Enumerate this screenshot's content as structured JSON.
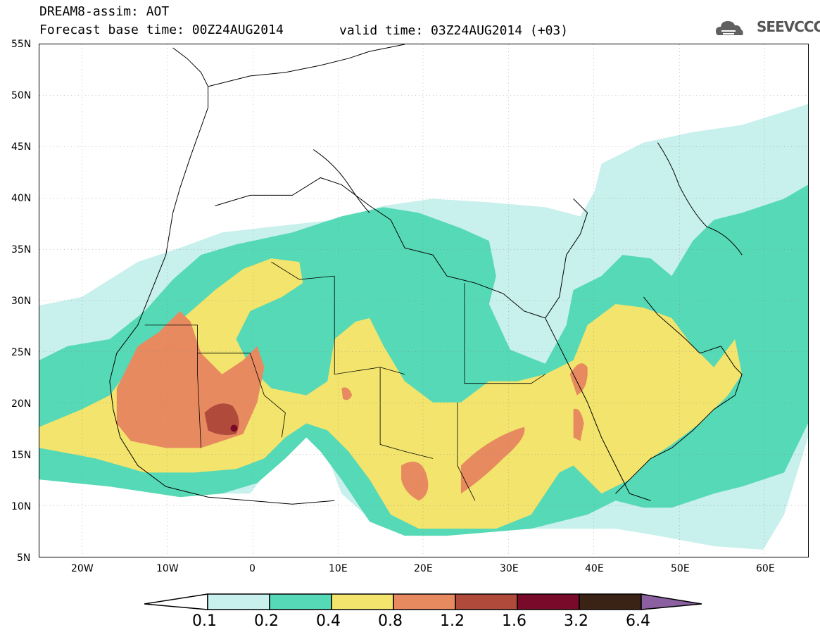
{
  "title": {
    "line1": "DREAM8-assim: AOT",
    "line2": "Forecast base time: 00Z24AUG2014",
    "valid": "valid time: 03Z24AUG2014 (+03)"
  },
  "logo": {
    "text": "SEEVCCC",
    "icon": "cloud-logo-icon"
  },
  "axes": {
    "lat_labels": [
      "55N",
      "50N",
      "45N",
      "40N",
      "35N",
      "30N",
      "25N",
      "20N",
      "15N",
      "10N",
      "5N"
    ],
    "lon_labels": [
      "20W",
      "10W",
      "0",
      "10E",
      "20E",
      "30E",
      "40E",
      "50E",
      "60E"
    ]
  },
  "colorbar": {
    "labels": [
      "0.1",
      "0.2",
      "0.4",
      "0.8",
      "1.2",
      "1.6",
      "3.2",
      "6.4"
    ],
    "colors": [
      "#c8f0ec",
      "#55d9b6",
      "#f2e46c",
      "#e88a60",
      "#b04a3a",
      "#7a0a2a",
      "#3a2214",
      "#8a60a0"
    ]
  }
}
